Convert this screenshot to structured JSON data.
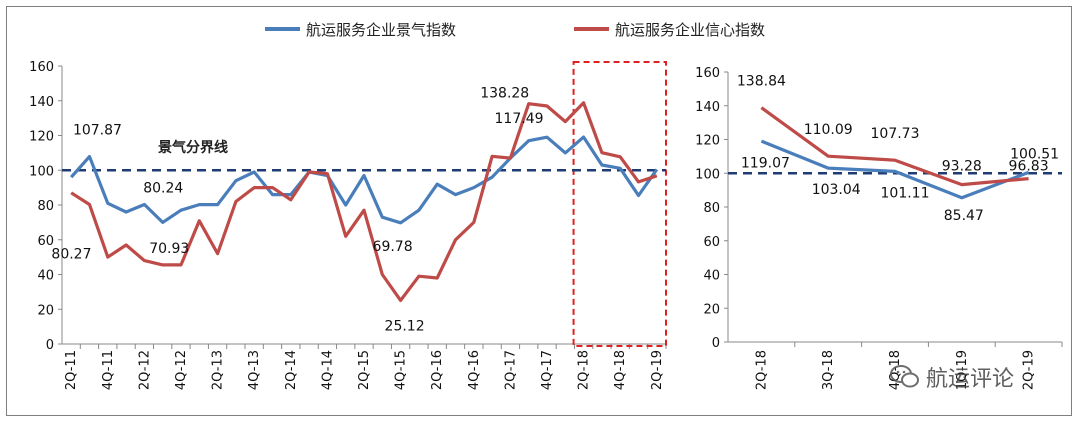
{
  "legend": [
    {
      "name": "航运服务企业景气指数",
      "color": "#4a7ebb"
    },
    {
      "name": "航运服务企业信心指数",
      "color": "#be4b48"
    }
  ],
  "threshold_label": "景气分界线",
  "watermark": "航运评论",
  "chart_data": [
    {
      "type": "line",
      "x": [
        "2Q-11",
        "3Q-11",
        "4Q-11",
        "1Q-12",
        "2Q-12",
        "3Q-12",
        "4Q-12",
        "1Q-13",
        "2Q-13",
        "3Q-13",
        "4Q-13",
        "1Q-14",
        "2Q-14",
        "3Q-14",
        "4Q-14",
        "1Q-15",
        "2Q-15",
        "3Q-15",
        "4Q-15",
        "1Q-16",
        "2Q-16",
        "3Q-16",
        "4Q-16",
        "1Q-17",
        "2Q-17",
        "3Q-17",
        "4Q-17",
        "1Q-18",
        "2Q-18",
        "3Q-18",
        "4Q-18",
        "1Q-19",
        "2Q-19"
      ],
      "x_tick_labels": [
        "2Q-11",
        "4Q-11",
        "2Q-12",
        "4Q-12",
        "2Q-13",
        "4Q-13",
        "2Q-14",
        "4Q-14",
        "2Q-15",
        "4Q-15",
        "2Q-16",
        "4Q-16",
        "2Q-17",
        "4Q-17",
        "2Q-18",
        "4Q-18",
        "2Q-19"
      ],
      "series": [
        {
          "name": "航运服务企业景气指数",
          "color": "#4a7ebb",
          "values": [
            96,
            107.87,
            81,
            76,
            80.27,
            70,
            77,
            80.24,
            80.24,
            94,
            99,
            86,
            86,
            99,
            97,
            80,
            97,
            73,
            69.78,
            77,
            92,
            86,
            90,
            96,
            107,
            117,
            119,
            110,
            119.07,
            103.04,
            101.11,
            85.47,
            100.51
          ]
        },
        {
          "name": "航运服务企业信心指数",
          "color": "#be4b48",
          "values": [
            87,
            80.27,
            50,
            57,
            48,
            45.5,
            45.5,
            70.93,
            52,
            82,
            90,
            90,
            83,
            99,
            98,
            62,
            77,
            40,
            25.12,
            39,
            38,
            60,
            70,
            108,
            107,
            138.28,
            137,
            128,
            138.84,
            110.09,
            107.73,
            93.28,
            96.83
          ]
        }
      ],
      "data_labels": [
        "107.87",
        "80.27",
        "80.24",
        "70.93",
        "69.78",
        "25.12",
        "138.28",
        "117.49"
      ],
      "reference_line": {
        "value": 100,
        "label": "景气分界线"
      },
      "highlight_range": [
        "2Q-18",
        "2Q-19"
      ],
      "ylim": [
        0,
        160
      ],
      "yticks": [
        0,
        20,
        40,
        60,
        80,
        100,
        120,
        140,
        160
      ]
    },
    {
      "type": "line",
      "x": [
        "2Q-18",
        "3Q-18",
        "4Q-18",
        "1Q-19",
        "2Q-19"
      ],
      "x_tick_labels": [
        "2Q-18",
        "3Q-18",
        "4Q-18",
        "1Q-19",
        "2Q-19"
      ],
      "series": [
        {
          "name": "航运服务企业景气指数",
          "color": "#4a7ebb",
          "values": [
            119.07,
            103.04,
            101.11,
            85.47,
            100.51
          ]
        },
        {
          "name": "航运服务企业信心指数",
          "color": "#be4b48",
          "values": [
            138.84,
            110.09,
            107.73,
            93.28,
            96.83
          ]
        }
      ],
      "reference_line": {
        "value": 100
      },
      "ylim": [
        0,
        160
      ],
      "yticks": [
        0,
        20,
        40,
        60,
        80,
        100,
        120,
        140,
        160
      ]
    }
  ]
}
